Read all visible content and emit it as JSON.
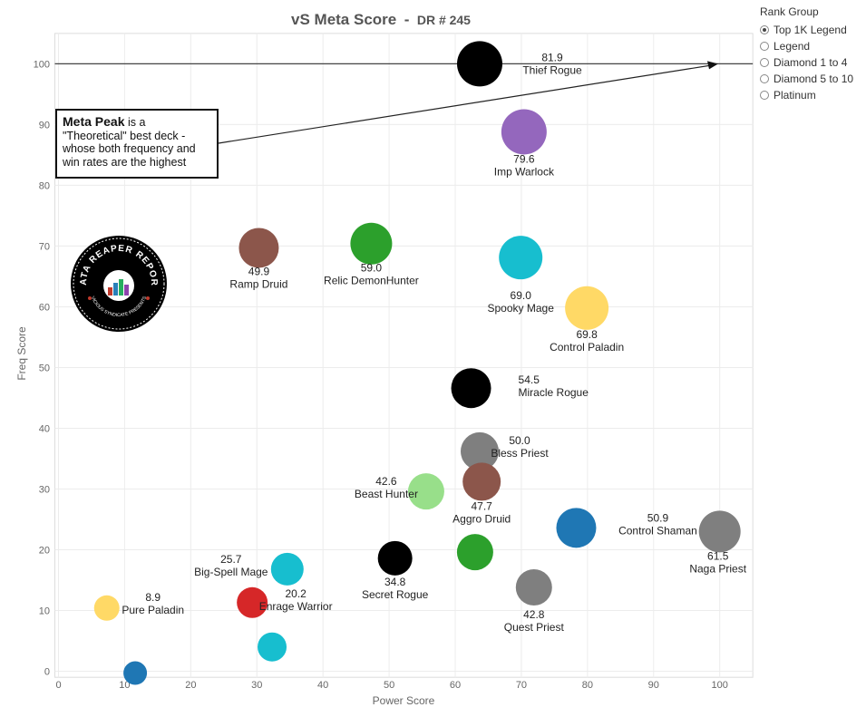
{
  "chart_data": {
    "type": "scatter",
    "title": "vS Meta Score",
    "subtitle": "DR # 245",
    "title_separator": "-",
    "xlabel": "Power Score",
    "ylabel": "Freq Score",
    "xlim": [
      0,
      105
    ],
    "ylim": [
      -1,
      105
    ],
    "xticks": [
      "0",
      "10",
      "20",
      "30",
      "40",
      "50",
      "60",
      "70",
      "80",
      "90",
      "100"
    ],
    "yticks": [
      "0",
      "10",
      "20",
      "30",
      "40",
      "50",
      "60",
      "70",
      "80",
      "90",
      "100"
    ],
    "grid": true,
    "meta_peak_line_y": 100,
    "points": [
      {
        "name": "Thief Rogue",
        "score": "81.9",
        "x": 63.7,
        "y": 100.0,
        "size": 1.0,
        "color": "#000000"
      },
      {
        "name": "Imp Warlock",
        "score": "79.6",
        "x": 70.4,
        "y": 88.8,
        "size": 1.0,
        "color": "#9467bd"
      },
      {
        "name": "Ramp Druid",
        "score": "49.9",
        "x": 30.3,
        "y": 69.7,
        "size": 0.85,
        "color": "#8c564b"
      },
      {
        "name": "Relic DemonHunter",
        "score": "59.0",
        "x": 47.3,
        "y": 70.4,
        "size": 0.9,
        "color": "#2ca02c"
      },
      {
        "name": "Spooky Mage",
        "score": "69.0",
        "x": 69.9,
        "y": 68.1,
        "size": 0.95,
        "color": "#17becf"
      },
      {
        "name": "Control Paladin",
        "score": "69.8",
        "x": 79.9,
        "y": 59.8,
        "size": 0.95,
        "color": "#ffd966"
      },
      {
        "name": "Miracle Rogue",
        "score": "54.5",
        "x": 62.4,
        "y": 46.6,
        "size": 0.85,
        "color": "#000000"
      },
      {
        "name": "Bless Priest",
        "score": "50.0",
        "x": 63.7,
        "y": 36.2,
        "size": 0.8,
        "color": "#7f7f7f"
      },
      {
        "name": "Beast Hunter",
        "score": "42.6",
        "x": 55.6,
        "y": 29.6,
        "size": 0.75,
        "color": "#98df8a"
      },
      {
        "name": "Aggro Druid",
        "score": "47.7",
        "x": 64.0,
        "y": 31.2,
        "size": 0.8,
        "color": "#8c564b"
      },
      {
        "name": "Control Shaman",
        "score": "50.9",
        "x": 78.3,
        "y": 23.6,
        "size": 0.85,
        "color": "#1f77b4"
      },
      {
        "name": "Naga Priest",
        "score": "61.5",
        "x": 100.0,
        "y": 23.0,
        "size": 0.9,
        "color": "#7f7f7f"
      },
      {
        "name": "Big-Spell Mage",
        "score": "25.7",
        "x": 34.6,
        "y": 16.8,
        "size": 0.65,
        "color": "#17becf"
      },
      {
        "name": "Secret Rogue",
        "score": "34.8",
        "x": 50.9,
        "y": 18.6,
        "size": 0.7,
        "color": "#000000"
      },
      {
        "name": "",
        "score": "",
        "x": 63.0,
        "y": 19.6,
        "size": 0.75,
        "color": "#2ca02c"
      },
      {
        "name": "Quest Priest",
        "score": "42.8",
        "x": 71.9,
        "y": 13.8,
        "size": 0.75,
        "color": "#7f7f7f"
      },
      {
        "name": "Enrage Warrior",
        "score": "20.2",
        "x": 29.3,
        "y": 11.3,
        "size": 0.6,
        "color": "#d62728"
      },
      {
        "name": "Pure Paladin",
        "score": "8.9",
        "x": 7.3,
        "y": 10.4,
        "size": 0.45,
        "color": "#ffd966"
      },
      {
        "name": "",
        "score": "",
        "x": 32.3,
        "y": 4.0,
        "size": 0.55,
        "color": "#17becf"
      },
      {
        "name": "",
        "score": "",
        "x": 11.6,
        "y": -0.3,
        "size": 0.4,
        "color": "#1f77b4"
      }
    ]
  },
  "legend": {
    "title": "Rank Group",
    "items": [
      {
        "label": "Top 1K Legend",
        "checked": true
      },
      {
        "label": "Legend",
        "checked": false
      },
      {
        "label": "Diamond 1 to 4",
        "checked": false
      },
      {
        "label": "Diamond 5 to 10",
        "checked": false
      },
      {
        "label": "Platinum",
        "checked": false
      }
    ]
  },
  "annotation": {
    "heading": "Meta Peak",
    "text_1": "is a",
    "text_2": "\"Theoretical\" best deck -",
    "text_3": "whose both frequency and",
    "text_4": "win rates are the highest"
  },
  "logo": {
    "top_text": "DATA REAPER REPORT",
    "bottom_text": "VICIOUS SYNDICATE PRESENTS"
  }
}
